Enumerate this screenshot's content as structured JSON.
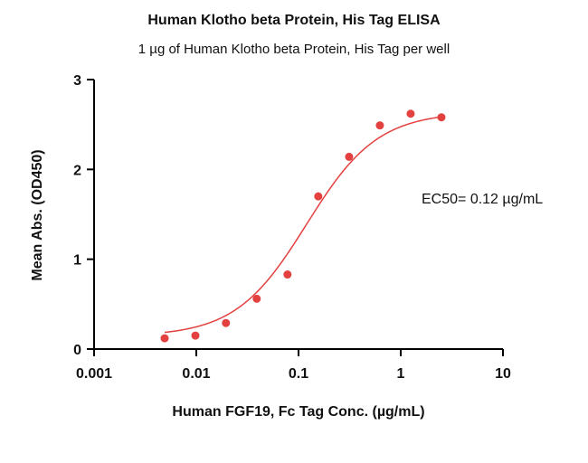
{
  "chart_data": {
    "type": "scatter",
    "title": "Human Klotho beta Protein, His Tag ELISA",
    "subtitle": "1 µg of Human Klotho beta Protein, His Tag per well",
    "xlabel": "Human FGF19, Fc Tag Conc. (µg/mL)",
    "ylabel": "Mean Abs. (OD450)",
    "x_scale": "log",
    "xlim": [
      0.001,
      10
    ],
    "ylim": [
      0,
      3
    ],
    "x_ticks": [
      0.001,
      0.01,
      0.1,
      1,
      10
    ],
    "x_tick_labels": [
      "0.001",
      "0.01",
      "0.1",
      "1",
      "10"
    ],
    "y_ticks": [
      0,
      1,
      2,
      3
    ],
    "y_tick_labels": [
      "0",
      "1",
      "2",
      "3"
    ],
    "grid": false,
    "legend": "none",
    "colors": {
      "series": "#e2413f",
      "axis": "#000000"
    },
    "series": [
      {
        "x": [
          0.0049,
          0.0098,
          0.0195,
          0.039,
          0.078,
          0.156,
          0.3125,
          0.625,
          1.25,
          2.5
        ],
        "y": [
          0.12,
          0.15,
          0.29,
          0.56,
          0.83,
          1.7,
          2.14,
          2.49,
          2.62,
          2.58
        ]
      }
    ],
    "fit": {
      "type": "4PL",
      "bottom": 0.14,
      "top": 2.64,
      "ec50": 0.12,
      "hill": 1.25,
      "x_range": [
        0.0049,
        2.5
      ]
    },
    "annotations": [
      "EC50= 0.12 µg/mL"
    ]
  }
}
